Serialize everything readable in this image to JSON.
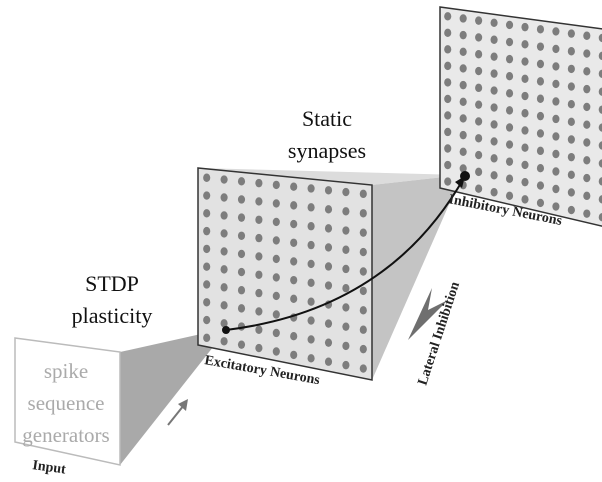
{
  "labels": {
    "static_synapses": [
      "Static",
      "synapses"
    ],
    "stdp": [
      "STDP",
      "plasticity"
    ],
    "input_box": [
      "spike",
      "sequence",
      "generators"
    ],
    "input": "Input",
    "excitatory": "Excitatory Neurons",
    "inhibitory": "Inhibitory Neurons",
    "lateral": "Lateral Inhibition"
  }
}
